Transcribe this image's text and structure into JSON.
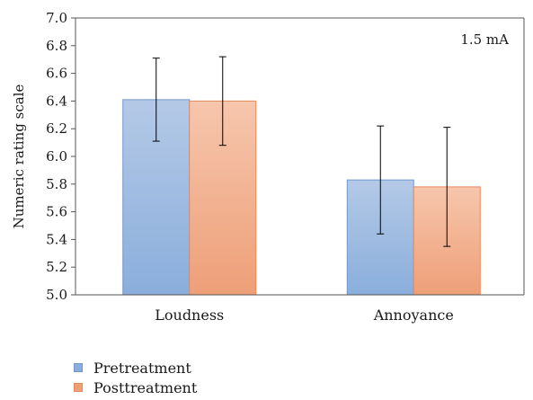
{
  "chart_data": {
    "type": "bar",
    "title": "",
    "annotation": "1.5 mA",
    "xlabel": "",
    "ylabel": "Numeric rating scale",
    "ylim": [
      5.0,
      7.0
    ],
    "yticks": [
      "5.0",
      "5.2",
      "5.4",
      "5.6",
      "5.8",
      "6.0",
      "6.2",
      "6.4",
      "6.6",
      "6.8",
      "7.0"
    ],
    "categories": [
      "Loudness",
      "Annoyance"
    ],
    "series": [
      {
        "name": "Pretreatment",
        "values": [
          6.41,
          5.83
        ],
        "error": [
          0.3,
          0.39
        ],
        "color_top": "#b4c9e6",
        "color_bottom": "#8aaedc",
        "border": "#6f98cf"
      },
      {
        "name": "Posttreatment",
        "values": [
          6.4,
          5.78
        ],
        "error": [
          0.32,
          0.43
        ],
        "color_top": "#f6c6ad",
        "color_bottom": "#ee9f78",
        "border": "#e48a5d"
      }
    ],
    "legend_position": "bottom-left"
  }
}
